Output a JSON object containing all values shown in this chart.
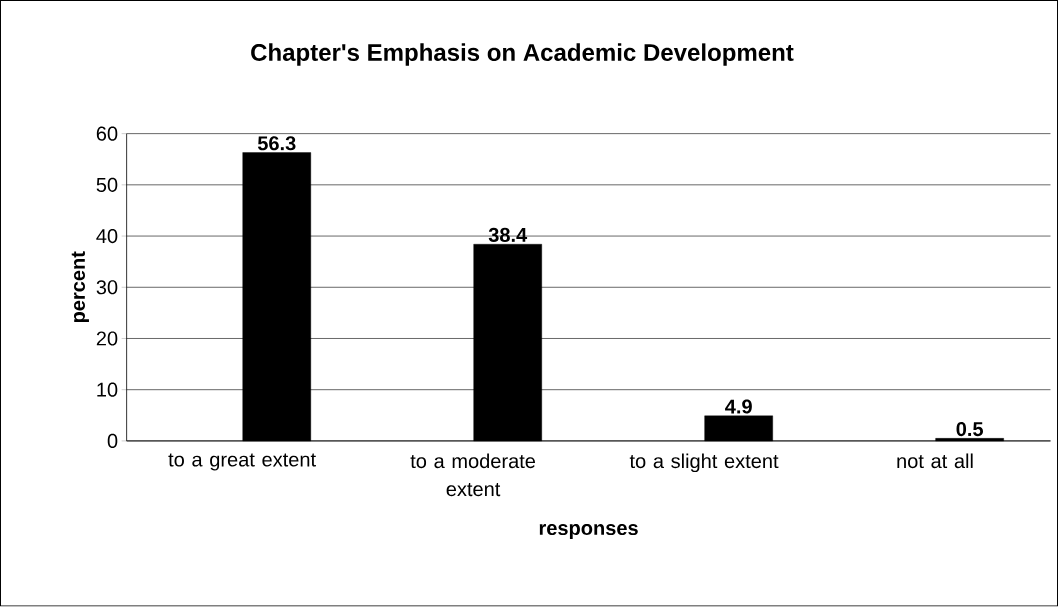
{
  "chart_data": {
    "type": "bar",
    "title": "Chapter's Emphasis on Academic Development",
    "xlabel": "responses",
    "ylabel": "percent",
    "categories": [
      "to a great extent",
      "to a moderate extent",
      "to a slight extent",
      "not at all"
    ],
    "values": [
      56.3,
      38.4,
      4.9,
      0.5
    ],
    "color": "#000000",
    "ylim": [
      0,
      60
    ],
    "yticks": [
      0,
      10,
      20,
      30,
      40,
      50,
      60
    ],
    "grid": "y",
    "data_labels": true
  }
}
